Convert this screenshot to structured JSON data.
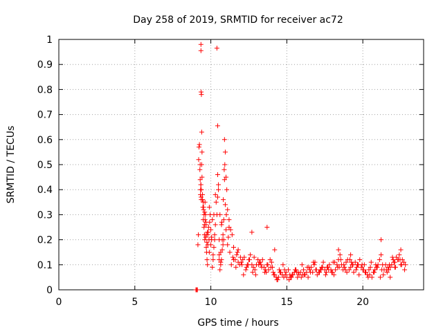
{
  "chart_data": {
    "type": "scatter",
    "title": "Day 258 of 2019, SRMTID for receiver ac72",
    "xlabel": "GPS time / hours",
    "ylabel": "SRMTID / TECUs",
    "xlim": [
      0,
      24
    ],
    "ylim": [
      0,
      1
    ],
    "xticks": [
      0,
      5,
      10,
      15,
      20
    ],
    "yticks": [
      0,
      0.1,
      0.2,
      0.3,
      0.4,
      0.5,
      0.6,
      0.7,
      0.8,
      0.9,
      1
    ],
    "xtick_labels": [
      "0",
      "5",
      "10",
      "15",
      "20"
    ],
    "ytick_labels": [
      "0",
      "0.1",
      "0.2",
      "0.3",
      "0.4",
      "0.5",
      "0.6",
      "0.7",
      "0.8",
      "0.9",
      "1"
    ],
    "grid": true,
    "marker": "+",
    "color": "#ff0000",
    "series": [
      {
        "name": "SRMTID",
        "x": [
          9.02,
          9.05,
          9.1,
          9.12,
          9.15,
          9.18,
          9.2,
          9.22,
          9.25,
          9.28,
          9.3,
          9.32,
          9.35,
          9.35,
          9.36,
          9.38,
          9.4,
          9.42,
          9.45,
          9.48,
          9.5,
          9.52,
          9.55,
          9.58,
          9.6,
          9.62,
          9.65,
          9.68,
          9.7,
          9.72,
          9.75,
          9.78,
          9.8,
          9.85,
          9.9,
          9.95,
          10.0,
          10.05,
          10.1,
          10.15,
          10.2,
          10.25,
          10.3,
          10.35,
          10.4,
          10.45,
          10.45,
          10.5,
          10.55,
          10.6,
          10.65,
          10.7,
          10.75,
          10.8,
          10.85,
          10.9,
          10.95,
          11.0,
          11.05,
          11.1,
          11.2,
          11.3,
          11.4,
          11.5,
          11.6,
          11.7,
          11.8,
          11.9,
          12.0,
          12.1,
          12.2,
          12.3,
          12.4,
          12.5,
          12.6,
          12.7,
          12.8,
          12.9,
          13.0,
          13.1,
          13.2,
          13.3,
          13.4,
          13.5,
          13.6,
          13.7,
          13.8,
          13.9,
          14.0,
          14.1,
          14.2,
          14.3,
          14.4,
          14.5,
          14.6,
          14.7,
          14.8,
          14.9,
          15.0,
          15.1,
          15.2,
          15.3,
          15.4,
          15.5,
          15.6,
          15.7,
          15.8,
          15.9,
          16.0,
          16.1,
          16.2,
          16.3,
          16.4,
          16.5,
          16.6,
          16.7,
          16.8,
          16.9,
          17.0,
          17.1,
          17.2,
          17.3,
          17.4,
          17.5,
          17.6,
          17.7,
          17.8,
          17.9,
          18.0,
          18.1,
          18.2,
          18.3,
          18.4,
          18.5,
          18.6,
          18.7,
          18.8,
          18.9,
          19.0,
          19.1,
          19.2,
          19.3,
          19.4,
          19.5,
          19.6,
          19.7,
          19.8,
          19.9,
          20.0,
          20.1,
          20.2,
          20.3,
          20.4,
          20.5,
          20.6,
          20.7,
          20.8,
          20.9,
          21.0,
          21.1,
          21.2,
          21.3,
          21.4,
          21.5,
          21.6,
          21.7,
          21.8,
          21.9,
          22.0,
          22.1,
          22.2,
          22.3,
          22.4,
          22.5,
          22.6,
          22.7,
          22.8,
          9.3,
          9.34,
          9.38,
          9.45,
          9.55,
          9.62,
          9.7,
          9.8,
          9.9,
          10.0,
          10.1,
          10.2,
          10.3,
          10.5,
          10.6,
          10.7,
          10.75,
          10.85,
          10.9,
          10.95,
          11.0,
          11.1,
          11.25,
          11.35,
          11.5,
          11.65,
          11.8,
          11.95,
          12.15,
          12.35,
          12.55,
          12.75,
          12.95,
          13.15,
          13.35,
          13.55,
          13.75,
          13.95,
          14.15,
          14.35,
          14.55,
          14.75,
          14.95,
          15.15,
          15.35,
          15.55,
          15.75,
          15.95,
          16.15,
          16.35,
          16.55,
          16.75,
          16.95,
          17.15,
          17.35,
          17.55,
          17.75,
          17.95,
          18.15,
          18.35,
          18.55,
          18.75,
          18.95,
          19.15,
          19.35,
          19.55,
          19.75,
          19.95,
          20.15,
          20.35,
          20.55,
          20.75,
          20.95,
          21.15,
          21.35,
          21.55,
          21.75,
          21.95,
          22.15,
          22.35,
          22.55,
          22.75,
          9.32,
          9.36,
          9.42,
          9.5,
          9.58,
          9.66,
          9.74,
          9.82,
          9.92,
          10.05,
          10.15,
          10.25,
          10.4,
          10.55,
          10.65,
          10.8,
          10.92,
          11.02,
          11.15,
          11.45,
          11.75,
          12.05,
          12.45,
          12.85,
          13.25,
          13.65,
          14.05,
          14.45,
          14.85,
          15.25,
          15.65,
          16.05,
          16.45,
          16.85,
          17.25,
          17.65,
          18.05,
          18.45,
          18.85,
          19.25,
          19.65,
          20.05,
          20.45,
          20.85,
          21.25,
          21.65,
          22.05,
          22.45,
          9.35,
          9.37,
          9.4,
          9.52,
          9.6,
          9.68,
          9.78,
          9.88,
          10.45,
          10.55,
          10.65,
          10.72,
          10.82,
          10.88,
          11.2,
          12.7,
          13.7,
          14.2,
          18.4,
          19.2,
          21.2,
          21.8,
          22.1,
          22.5
        ],
        "y": [
          0.0,
          0.0,
          0.0,
          0.0,
          0.18,
          0.22,
          0.52,
          0.57,
          0.58,
          0.48,
          0.44,
          0.38,
          0.98,
          0.955,
          0.79,
          0.78,
          0.63,
          0.55,
          0.36,
          0.33,
          0.28,
          0.32,
          0.25,
          0.22,
          0.2,
          0.35,
          0.3,
          0.26,
          0.17,
          0.15,
          0.12,
          0.1,
          0.22,
          0.25,
          0.33,
          0.3,
          0.18,
          0.2,
          0.09,
          0.12,
          0.17,
          0.2,
          0.26,
          0.35,
          0.965,
          0.655,
          0.46,
          0.42,
          0.14,
          0.08,
          0.1,
          0.12,
          0.16,
          0.18,
          0.2,
          0.6,
          0.55,
          0.45,
          0.4,
          0.32,
          0.28,
          0.24,
          0.22,
          0.17,
          0.12,
          0.14,
          0.16,
          0.1,
          0.11,
          0.12,
          0.13,
          0.08,
          0.1,
          0.12,
          0.14,
          0.1,
          0.09,
          0.08,
          0.1,
          0.12,
          0.11,
          0.1,
          0.12,
          0.09,
          0.08,
          0.1,
          0.08,
          0.12,
          0.11,
          0.07,
          0.06,
          0.05,
          0.04,
          0.08,
          0.07,
          0.06,
          0.05,
          0.06,
          0.05,
          0.08,
          0.06,
          0.05,
          0.06,
          0.07,
          0.08,
          0.05,
          0.06,
          0.07,
          0.1,
          0.08,
          0.06,
          0.07,
          0.05,
          0.08,
          0.09,
          0.07,
          0.1,
          0.08,
          0.06,
          0.07,
          0.08,
          0.09,
          0.11,
          0.08,
          0.07,
          0.09,
          0.1,
          0.08,
          0.07,
          0.06,
          0.08,
          0.1,
          0.12,
          0.14,
          0.1,
          0.08,
          0.09,
          0.11,
          0.12,
          0.08,
          0.09,
          0.1,
          0.07,
          0.11,
          0.09,
          0.1,
          0.12,
          0.09,
          0.08,
          0.1,
          0.07,
          0.06,
          0.08,
          0.09,
          0.05,
          0.07,
          0.08,
          0.09,
          0.1,
          0.12,
          0.14,
          0.1,
          0.08,
          0.1,
          0.07,
          0.08,
          0.09,
          0.1,
          0.12,
          0.11,
          0.13,
          0.12,
          0.14,
          0.1,
          0.12,
          0.11,
          0.1,
          0.5,
          0.42,
          0.4,
          0.38,
          0.3,
          0.28,
          0.22,
          0.18,
          0.15,
          0.24,
          0.28,
          0.3,
          0.38,
          0.4,
          0.3,
          0.26,
          0.2,
          0.28,
          0.44,
          0.34,
          0.24,
          0.18,
          0.15,
          0.1,
          0.12,
          0.09,
          0.11,
          0.13,
          0.06,
          0.09,
          0.12,
          0.07,
          0.06,
          0.1,
          0.09,
          0.07,
          0.1,
          0.09,
          0.06,
          0.04,
          0.07,
          0.1,
          0.07,
          0.04,
          0.06,
          0.08,
          0.07,
          0.05,
          0.06,
          0.09,
          0.07,
          0.11,
          0.08,
          0.07,
          0.09,
          0.06,
          0.08,
          0.07,
          0.11,
          0.09,
          0.12,
          0.1,
          0.07,
          0.12,
          0.1,
          0.08,
          0.06,
          0.1,
          0.07,
          0.05,
          0.11,
          0.07,
          0.09,
          0.05,
          0.06,
          0.08,
          0.1,
          0.13,
          0.09,
          0.12,
          0.1,
          0.08,
          0.4,
          0.37,
          0.45,
          0.35,
          0.26,
          0.21,
          0.19,
          0.23,
          0.27,
          0.21,
          0.14,
          0.22,
          0.3,
          0.2,
          0.11,
          0.22,
          0.5,
          0.3,
          0.21,
          0.13,
          0.15,
          0.1,
          0.1,
          0.13,
          0.11,
          0.07,
          0.09,
          0.05,
          0.08,
          0.05,
          0.07,
          0.06,
          0.09,
          0.11,
          0.08,
          0.09,
          0.11,
          0.09,
          0.08,
          0.11,
          0.1,
          0.08,
          0.06,
          0.1,
          0.08,
          0.09,
          0.11,
          0.12,
          0.42,
          0.36,
          0.5,
          0.33,
          0.31,
          0.27,
          0.23,
          0.2,
          0.37,
          0.12,
          0.15,
          0.27,
          0.36,
          0.48,
          0.25,
          0.23,
          0.25,
          0.16,
          0.16,
          0.14,
          0.2,
          0.05,
          0.09,
          0.16
        ]
      }
    ]
  }
}
